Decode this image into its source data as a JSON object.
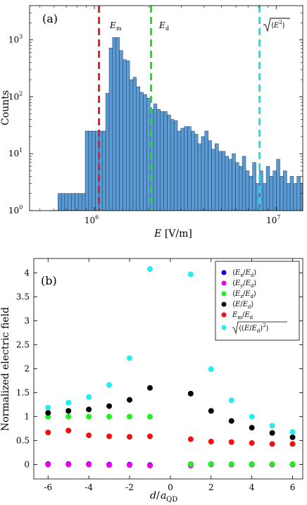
{
  "chart_data": [
    {
      "type": "bar",
      "panel_label": "(a)",
      "xlabel": "E [V/m]",
      "ylabel": "Counts",
      "xscale": "log",
      "yscale": "log",
      "xlim": [
        440000,
        14000000
      ],
      "ylim": [
        1,
        4000
      ],
      "xticks": [
        1000000,
        10000000
      ],
      "xtick_labels": [
        "10^6",
        "10^7"
      ],
      "yticks": [
        1,
        10,
        100,
        1000
      ],
      "ytick_labels": [
        "10^0",
        "10^1",
        "10^2",
        "10^3"
      ],
      "bar_color": "#5b9bd5",
      "bins": {
        "start": 630000,
        "ratio": 1.0442,
        "counts": [
          2,
          2,
          2,
          2,
          2,
          2,
          2,
          2,
          25,
          25,
          25,
          25,
          25,
          25,
          115,
          720,
          1100,
          1100,
          650,
          450,
          430,
          200,
          220,
          150,
          120,
          110,
          95,
          60,
          75,
          60,
          55,
          55,
          48,
          40,
          38,
          25,
          28,
          30,
          30,
          25,
          22,
          15,
          20,
          25,
          17,
          12,
          15,
          11,
          11,
          9,
          8,
          10,
          7,
          6,
          9,
          5,
          4,
          7,
          3,
          5,
          3,
          6,
          4,
          5,
          8,
          4,
          5,
          3,
          4,
          3,
          4,
          3,
          6,
          4,
          3,
          5,
          4,
          4,
          3,
          3,
          3,
          3,
          2,
          4
        ]
      },
      "annotations": [
        {
          "label": "E_m",
          "x": 1060000,
          "color": "#dd2222"
        },
        {
          "label": "E_d",
          "x": 2050000,
          "color": "#22dd22"
        },
        {
          "label": "sqrt(<E^2>)",
          "x": 8100000,
          "color": "#22dddd"
        }
      ]
    },
    {
      "type": "scatter",
      "panel_label": "(b)",
      "xlabel": "d/a_QD",
      "ylabel": "Normalized electric field",
      "xlim": [
        -6.7,
        6.5
      ],
      "ylim": [
        -0.3,
        4.3
      ],
      "xticks": [
        -6,
        -4,
        -2,
        0,
        2,
        4,
        6
      ],
      "yticks": [
        0,
        0.5,
        1,
        1.5,
        2,
        2.5,
        3,
        3.5,
        4
      ],
      "legend_position": "top-right",
      "x": [
        -6,
        -5,
        -4,
        -3,
        -2,
        -1,
        1,
        2,
        3,
        4,
        5,
        6
      ],
      "series": [
        {
          "name": "<E_x/E_d>",
          "color": "#0000ee",
          "values": [
            0.01,
            0.01,
            0.01,
            0.0,
            0.0,
            -0.01,
            0.01,
            0.01,
            0.0,
            0.0,
            0.0,
            0.0
          ]
        },
        {
          "name": "<E_y/E_d>",
          "color": "#ee00ee",
          "values": [
            0.0,
            0.0,
            0.0,
            -0.01,
            -0.01,
            -0.02,
            -0.02,
            0.0,
            0.0,
            0.0,
            0.0,
            0.0
          ]
        },
        {
          "name": "<E_z/E_d>",
          "color": "#22ee22",
          "values": [
            1.0,
            1.0,
            1.0,
            1.0,
            1.0,
            1.0,
            0.01,
            0.01,
            0.01,
            0.01,
            0.01,
            0.01
          ]
        },
        {
          "name": "<E/E_d>",
          "color": "#000000",
          "values": [
            1.08,
            1.12,
            1.15,
            1.22,
            1.35,
            1.6,
            1.48,
            1.12,
            0.91,
            0.77,
            0.66,
            0.57
          ]
        },
        {
          "name": "E_m/E_d",
          "color": "#ee1111",
          "values": [
            0.67,
            0.71,
            0.61,
            0.59,
            0.58,
            0.59,
            0.53,
            0.48,
            0.47,
            0.45,
            0.43,
            0.43
          ]
        },
        {
          "name": "sqrt(<(E/E_d)^2>)",
          "color": "#22eeee",
          "values": [
            1.19,
            1.29,
            1.41,
            1.66,
            2.22,
            4.08,
            3.97,
            1.99,
            1.34,
            1.0,
            0.81,
            0.68
          ]
        }
      ]
    }
  ]
}
